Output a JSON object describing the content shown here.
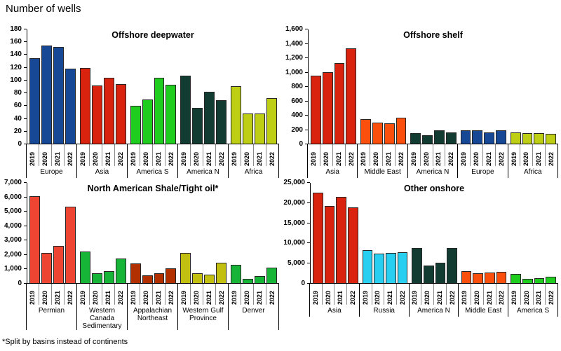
{
  "page_title": "Number of wells",
  "footnote": "*Split by basins instead of continents",
  "years": [
    "2019",
    "2020",
    "2021",
    "2022"
  ],
  "chart_data": [
    {
      "type": "bar",
      "title": "Offshore deepwater",
      "xlabel": "",
      "ylabel": "",
      "ylim": [
        0,
        180
      ],
      "ytick_step": 20,
      "ytick_labels": [
        "0",
        "20",
        "40",
        "60",
        "80",
        "100",
        "120",
        "140",
        "160",
        "180"
      ],
      "grid": false,
      "legend": "none",
      "categories": [
        "Europe",
        "Asia",
        "America S",
        "America N",
        "Africa"
      ],
      "groups": [
        {
          "label": "Europe",
          "color": "#174896",
          "values": [
            135,
            155,
            152,
            118
          ]
        },
        {
          "label": "Asia",
          "color": "#D9230F",
          "values": [
            119,
            92,
            104,
            94
          ]
        },
        {
          "label": "America S",
          "color": "#1ECD1E",
          "values": [
            60,
            70,
            104,
            93
          ]
        },
        {
          "label": "America N",
          "color": "#123B31",
          "values": [
            107,
            56,
            82,
            69
          ]
        },
        {
          "label": "Africa",
          "color": "#BECE15",
          "values": [
            91,
            47,
            48,
            72
          ]
        }
      ]
    },
    {
      "type": "bar",
      "title": "Offshore shelf",
      "xlabel": "",
      "ylabel": "",
      "ylim": [
        0,
        1600
      ],
      "ytick_step": 200,
      "ytick_labels": [
        "0",
        "200",
        "400",
        "600",
        "800",
        "1,000",
        "1,200",
        "1,400",
        "1,600"
      ],
      "grid": false,
      "legend": "none",
      "categories": [
        "Asia",
        "Middle East",
        "America N",
        "Europe",
        "Africa"
      ],
      "groups": [
        {
          "label": "Asia",
          "color": "#D9230F",
          "values": [
            950,
            1000,
            1130,
            1340
          ]
        },
        {
          "label": "Middle East",
          "color": "#FB4F0E",
          "values": [
            345,
            295,
            285,
            360
          ]
        },
        {
          "label": "America N",
          "color": "#123B31",
          "values": [
            145,
            115,
            185,
            160
          ]
        },
        {
          "label": "Europe",
          "color": "#174896",
          "values": [
            185,
            185,
            160,
            185
          ]
        },
        {
          "label": "Africa",
          "color": "#BECE15",
          "values": [
            155,
            145,
            145,
            140
          ]
        }
      ]
    },
    {
      "type": "bar",
      "title": "North American Shale/Tight oil*",
      "xlabel": "",
      "ylabel": "",
      "ylim": [
        0,
        7000
      ],
      "ytick_step": 1000,
      "ytick_labels": [
        "0",
        "1,000",
        "2,000",
        "3,000",
        "4,000",
        "5,000",
        "6,000",
        "7,000"
      ],
      "grid": false,
      "legend": "none",
      "categories": [
        "Permian",
        "Western Canada Sedimentary",
        "Appalachian Northeast",
        "Western Gulf Province",
        "Denver"
      ],
      "groups": [
        {
          "label": "Permian",
          "color": "#EE4533",
          "values": [
            6050,
            2100,
            2600,
            5350
          ]
        },
        {
          "label": "Western Canada Sedimentary",
          "color": "#16B437",
          "values": [
            2200,
            680,
            820,
            1700
          ]
        },
        {
          "label": "Appalachian Northeast",
          "color": "#B23000",
          "values": [
            1380,
            530,
            680,
            1050
          ]
        },
        {
          "label": "Western Gulf Province",
          "color": "#C3BF10",
          "values": [
            2100,
            680,
            580,
            1400
          ]
        },
        {
          "label": "Denver",
          "color": "#16B437",
          "values": [
            1250,
            280,
            480,
            1100
          ]
        }
      ]
    },
    {
      "type": "bar",
      "title": "Other onshore",
      "xlabel": "",
      "ylabel": "",
      "ylim": [
        0,
        25000
      ],
      "ytick_step": 5000,
      "ytick_labels": [
        "0",
        "5,000",
        "10,000",
        "15,000",
        "20,000",
        "25,000"
      ],
      "grid": false,
      "legend": "none",
      "categories": [
        "Asia",
        "Russia",
        "America N",
        "Middle East",
        "America S"
      ],
      "groups": [
        {
          "label": "Asia",
          "color": "#D9230F",
          "values": [
            22600,
            19200,
            21500,
            18900
          ]
        },
        {
          "label": "Russia",
          "color": "#29CFF0",
          "values": [
            8200,
            7300,
            7500,
            7700
          ]
        },
        {
          "label": "America N",
          "color": "#123B31",
          "values": [
            8700,
            4400,
            5000,
            8700
          ]
        },
        {
          "label": "Middle East",
          "color": "#FB4F0E",
          "values": [
            2900,
            2400,
            2600,
            2800
          ]
        },
        {
          "label": "America S",
          "color": "#1ECD1E",
          "values": [
            2200,
            1000,
            1200,
            1600
          ]
        }
      ]
    }
  ]
}
